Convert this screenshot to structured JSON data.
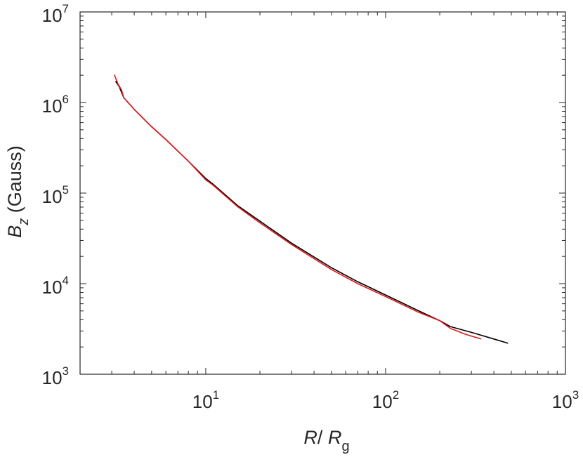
{
  "chart_data": {
    "type": "line",
    "x_scale": "log",
    "y_scale": "log",
    "xlim": [
      2,
      1000
    ],
    "ylim": [
      1000,
      10000000
    ],
    "xlabel": {
      "main": "R",
      "sep": "/ ",
      "sym": "R",
      "sub": "g"
    },
    "ylabel": {
      "sym": "B",
      "sub": "z",
      "rest": " (Gauss)"
    },
    "x_ticks": [
      {
        "value": 10,
        "base": "10",
        "exp": "1"
      },
      {
        "value": 100,
        "base": "10",
        "exp": "2"
      },
      {
        "value": 1000,
        "base": "10",
        "exp": "3"
      }
    ],
    "y_ticks": [
      {
        "value": 1000,
        "base": "10",
        "exp": "3"
      },
      {
        "value": 10000,
        "base": "10",
        "exp": "4"
      },
      {
        "value": 100000,
        "base": "10",
        "exp": "5"
      },
      {
        "value": 1000000,
        "base": "10",
        "exp": "6"
      },
      {
        "value": 10000000,
        "base": "10",
        "exp": "7"
      }
    ],
    "grid": false,
    "box": true,
    "series": [
      {
        "color": "#000000",
        "x": [
          3.15,
          3.3,
          3.5,
          4,
          5,
          6,
          8,
          10,
          11,
          15,
          20,
          30,
          50,
          70,
          100,
          150,
          200,
          230,
          300,
          400,
          480
        ],
        "y": [
          1720000,
          1500000,
          1130000,
          840000,
          540000,
          390000,
          225000,
          145000,
          125000,
          73000,
          49000,
          28000,
          15000,
          10500,
          7500,
          5100,
          3900,
          3350,
          2900,
          2450,
          2200
        ]
      },
      {
        "color": "#e31a1c",
        "x": [
          3.1,
          3.25,
          3.4,
          3.5,
          4,
          5,
          6,
          8,
          10,
          11,
          15,
          20,
          30,
          50,
          70,
          100,
          150,
          200,
          230,
          280,
          340
        ],
        "y": [
          2030000,
          1600000,
          1380000,
          1130000,
          840000,
          540000,
          390000,
          225000,
          140000,
          122000,
          71000,
          47000,
          27000,
          14300,
          10000,
          7200,
          4900,
          3900,
          3200,
          2750,
          2450
        ]
      }
    ]
  }
}
